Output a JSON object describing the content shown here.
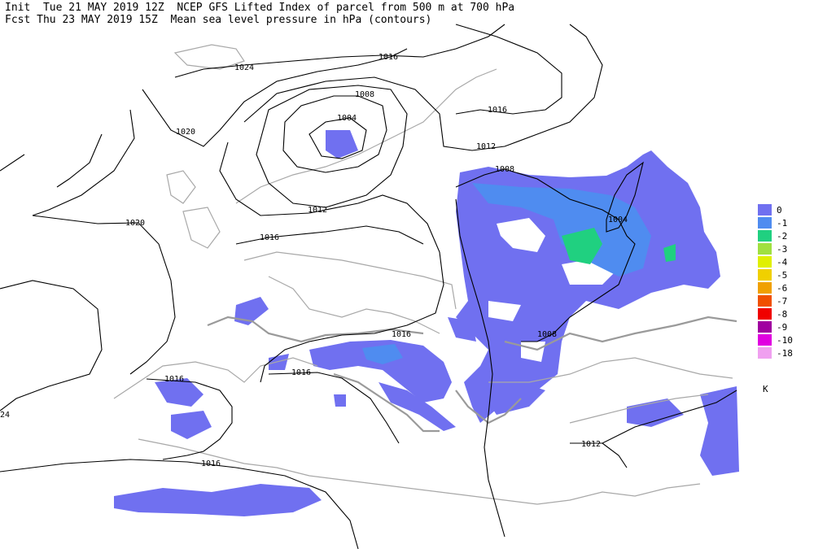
{
  "header": {
    "line1": "Init  Tue 21 MAY 2019 12Z  NCEP GFS Lifted Index of parcel from 500 m at 700 hPa",
    "line2": "Fcst Thu 23 MAY 2019 15Z  Mean sea level pressure in hPa (contours)"
  },
  "contour_labels": [
    "1024",
    "1016",
    "1020",
    "1008",
    "1004",
    "1016",
    "1012",
    "1008",
    "1012",
    "1016",
    "1020",
    "1004",
    "1016",
    "1008",
    "1016",
    "1016",
    "1012",
    "1016",
    "24"
  ],
  "legend": {
    "unit": "K",
    "items": [
      {
        "label": "0",
        "color": "#7070f0"
      },
      {
        "label": "-1",
        "color": "#4f8cf0"
      },
      {
        "label": "-2",
        "color": "#20d080"
      },
      {
        "label": "-3",
        "color": "#a0e040"
      },
      {
        "label": "-4",
        "color": "#e0f000"
      },
      {
        "label": "-5",
        "color": "#f0d000"
      },
      {
        "label": "-6",
        "color": "#f0a000"
      },
      {
        "label": "-7",
        "color": "#f05000"
      },
      {
        "label": "-8",
        "color": "#f00000"
      },
      {
        "label": "-9",
        "color": "#a000a0"
      },
      {
        "label": "-10",
        "color": "#e000e0"
      },
      {
        "label": "-18",
        "color": "#f0a0f0"
      }
    ]
  }
}
